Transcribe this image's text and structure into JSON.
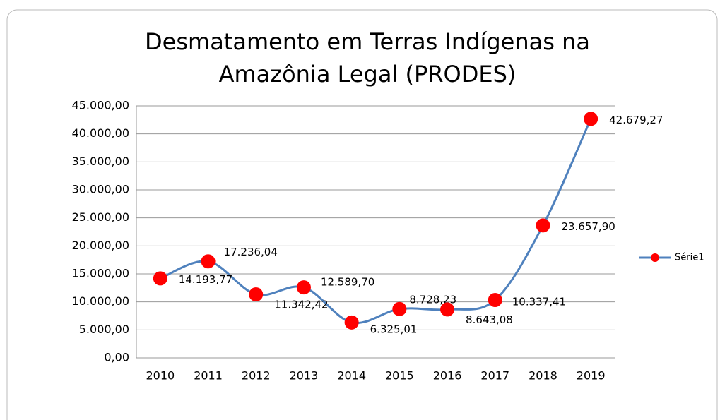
{
  "chart_data": {
    "type": "line",
    "title": "Desmatamento em Terras Indígenas na Amazônia Legal (PRODES)",
    "categories": [
      "2010",
      "2011",
      "2012",
      "2013",
      "2014",
      "2015",
      "2016",
      "2017",
      "2018",
      "2019"
    ],
    "series": [
      {
        "name": "Série1",
        "color": "#4f81bd",
        "marker_color": "#ff0000",
        "values": [
          14193.77,
          17236.04,
          11342.42,
          12589.7,
          6325.01,
          8728.23,
          8643.08,
          10337.41,
          23657.9,
          42679.27
        ],
        "value_labels": [
          "14.193,77",
          "17.236,04",
          "11.342,42",
          "12.589,70",
          "6.325,01",
          "8.728,23",
          "8.643,08",
          "10.337,41",
          "23.657,90",
          "42.679,27"
        ]
      }
    ],
    "ylim": [
      0,
      45000
    ],
    "yticks": [
      {
        "value": 0,
        "label": "0,00"
      },
      {
        "value": 5000,
        "label": "5.000,00"
      },
      {
        "value": 10000,
        "label": "10.000,00"
      },
      {
        "value": 15000,
        "label": "15.000,00"
      },
      {
        "value": 20000,
        "label": "20.000,00"
      },
      {
        "value": 25000,
        "label": "25.000,00"
      },
      {
        "value": 30000,
        "label": "30.000,00"
      },
      {
        "value": 35000,
        "label": "35.000,00"
      },
      {
        "value": 40000,
        "label": "40.000,00"
      },
      {
        "value": 45000,
        "label": "45.000,00"
      }
    ],
    "grid": true,
    "smooth": true,
    "legend": "right"
  }
}
